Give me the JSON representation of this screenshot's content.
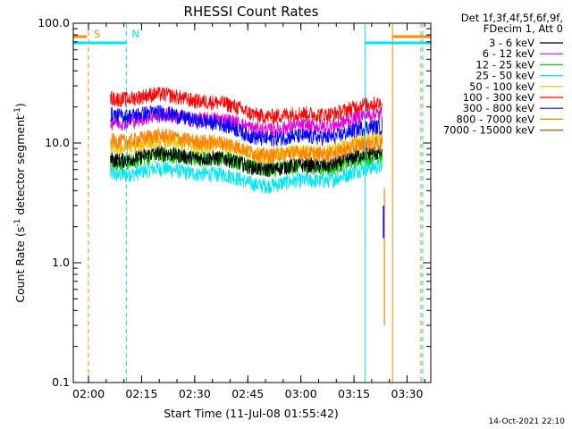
{
  "chart_data": {
    "type": "line",
    "title": "RHESSI Count Rates",
    "xlabel": "Start Time (11-Jul-08 01:55:42)",
    "ylabel_parts": [
      "Count Rate (s",
      "-1",
      " detector segment",
      "-1",
      ")"
    ],
    "x_ticks": [
      "02:00",
      "02:15",
      "02:30",
      "02:45",
      "03:00",
      "03:15",
      "03:30"
    ],
    "y_ticks": [
      "0.1",
      "1.0",
      "10.0",
      "100.0"
    ],
    "y_scale": "log",
    "ylim": [
      0.1,
      100
    ],
    "x_range_minutes": [
      0,
      101
    ],
    "legend_header": [
      "Det 1f,3f,4f,5f,6f,9f,",
      "FDecim 1, Att 0"
    ],
    "footer_date": "14-Oct-2021 22:10",
    "annotations": [
      {
        "label": "S",
        "at_minute": 4.3,
        "color": "#ff8c00"
      },
      {
        "label": "N",
        "at_minute": 15.0,
        "color": "#00e5ee"
      }
    ],
    "series": [
      {
        "name": "3 - 6 keV",
        "color": "#000000",
        "start": 8.0,
        "mid": 6.6,
        "end": 7.6
      },
      {
        "name": "6 - 12 keV",
        "color": "#e000e0",
        "start": 16.5,
        "mid": 14.0,
        "end": 16.0
      },
      {
        "name": "12 - 25 keV",
        "color": "#00cc00",
        "start": 7.5,
        "mid": 6.7,
        "end": 7.0
      },
      {
        "name": "25 - 50 keV",
        "color": "#00e5ee",
        "start": 6.0,
        "mid": 4.8,
        "end": 5.8
      },
      {
        "name": "50 - 100 keV",
        "color": "#f0c000",
        "start": 10.0,
        "mid": 8.5,
        "end": 10.0
      },
      {
        "name": "100 - 300 keV",
        "color": "#ff0000",
        "start": 26.0,
        "mid": 18.5,
        "end": 19.5
      },
      {
        "name": "300 - 800 keV",
        "color": "#0000ff",
        "start": 19.0,
        "mid": 12.0,
        "end": 12.5
      },
      {
        "name": "800 - 7000 keV",
        "color": "#ff8000",
        "start": 11.5,
        "mid": 8.8,
        "end": 9.0
      },
      {
        "name": "7000 - 15000 keV",
        "color": "#a06000",
        "start": null,
        "mid": null,
        "end": null
      }
    ],
    "colors": {
      "axis": "#000000",
      "cyan": "#00e5ee",
      "orange": "#ff8c00"
    }
  }
}
